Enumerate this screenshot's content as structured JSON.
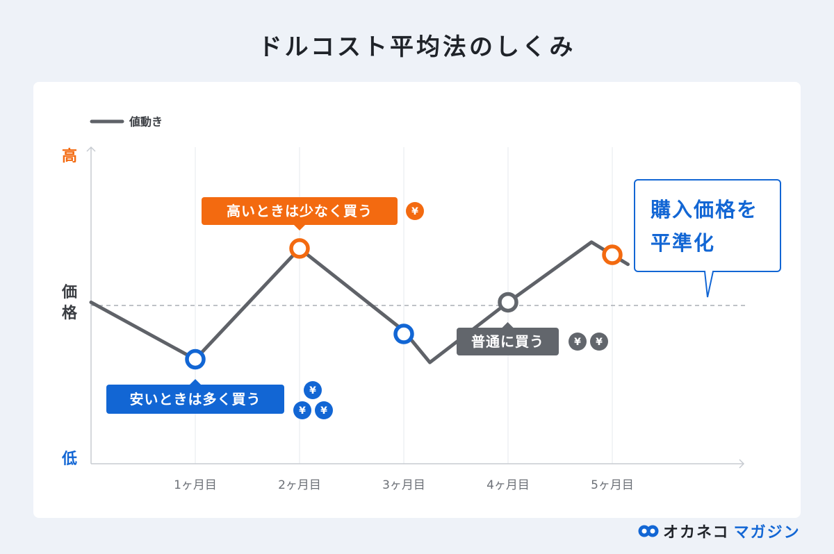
{
  "title": "ドルコスト平均法のしくみ",
  "brand": {
    "name_a": "オカネコ",
    "name_b": "マガジン"
  },
  "colors": {
    "line": "#5f6268",
    "orange": "#f36a10",
    "blue": "#1266d4",
    "gray": "#62666c",
    "grid": "#e6e8ec",
    "dashed": "#a9adb4",
    "axis": "#c7cbd1"
  },
  "chart_data": {
    "type": "line",
    "legend": "値動き",
    "y_axis": {
      "high": "高",
      "mid": "価格",
      "low": "低"
    },
    "x_categories": [
      "1ヶ月目",
      "2ヶ月目",
      "3ヶ月目",
      "4ヶ月目",
      "5ヶ月目"
    ],
    "price_line": [
      {
        "x": 0,
        "y": 0.51
      },
      {
        "x": 1,
        "y": 0.33
      },
      {
        "x": 2,
        "y": 0.68
      },
      {
        "x": 3,
        "y": 0.42
      },
      {
        "x": 3.25,
        "y": 0.32
      },
      {
        "x": 4,
        "y": 0.51
      },
      {
        "x": 4.8,
        "y": 0.7
      },
      {
        "x": 5.15,
        "y": 0.63
      }
    ],
    "average_level": 0.5,
    "purchase_points": [
      {
        "x": 1,
        "y": 0.33,
        "type": "blue"
      },
      {
        "x": 2,
        "y": 0.68,
        "type": "orange"
      },
      {
        "x": 3,
        "y": 0.41,
        "type": "blue"
      },
      {
        "x": 4,
        "y": 0.51,
        "type": "gray"
      },
      {
        "x": 5,
        "y": 0.66,
        "type": "orange"
      }
    ],
    "callouts": {
      "low": {
        "text": "安いときは多く買う",
        "coins": 3,
        "coin_symbol": "¥"
      },
      "high": {
        "text": "高いときは少なく買う",
        "coins": 1,
        "coin_symbol": "¥"
      },
      "normal": {
        "text": "普通に買う",
        "coins": 2,
        "coin_symbol": "¥"
      },
      "result_line1": "購入価格を",
      "result_line2": "平準化"
    }
  }
}
